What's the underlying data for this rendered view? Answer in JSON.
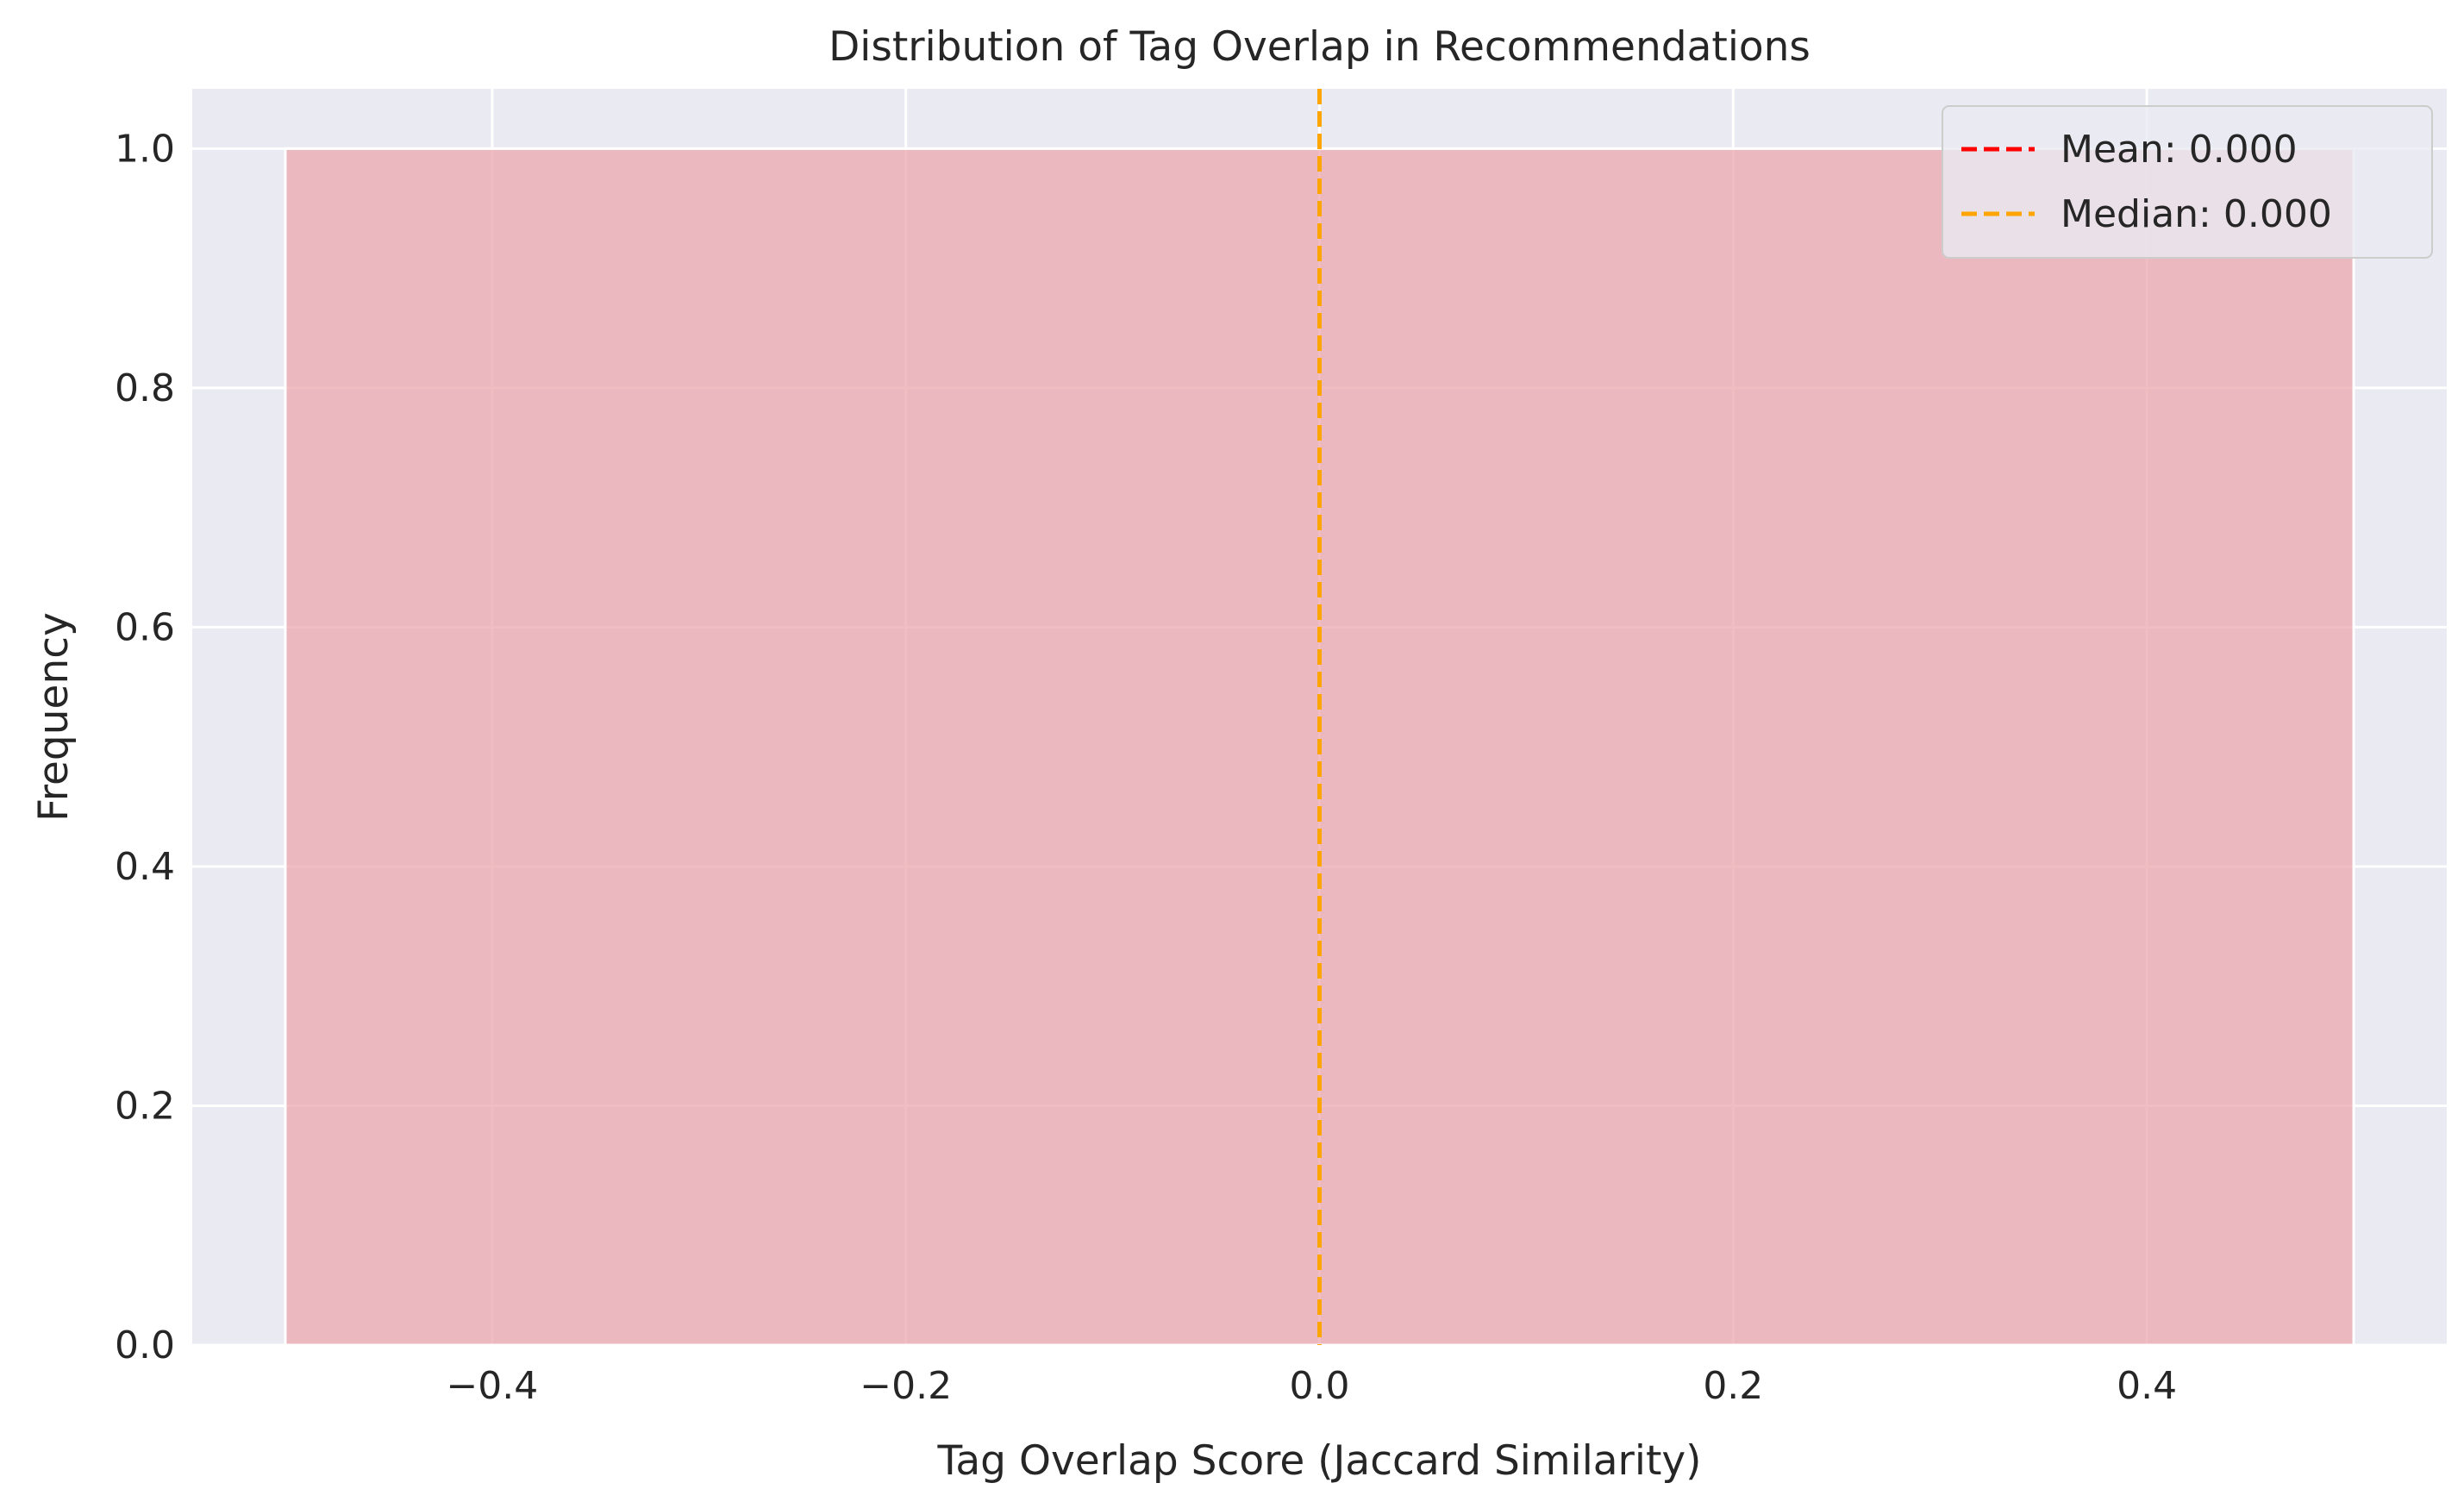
{
  "chart_data": {
    "type": "bar",
    "title": "Distribution of Tag Overlap in Recommendations",
    "xlabel": "Tag Overlap Score (Jaccard Similarity)",
    "ylabel": "Frequency",
    "xlim": [
      -0.545,
      1.0
    ],
    "ylim": [
      0,
      1.05
    ],
    "xticks": [
      -0.4,
      -0.2,
      0.0,
      0.2,
      0.4
    ],
    "xtick_labels": [
      "−0.4",
      "−0.2",
      "0.0",
      "0.2",
      "0.4"
    ],
    "yticks": [
      0.0,
      0.2,
      0.4,
      0.6,
      0.8,
      1.0
    ],
    "ytick_labels": [
      "0.0",
      "0.2",
      "0.4",
      "0.6",
      "0.8",
      "1.0"
    ],
    "bins": [
      {
        "x0": -0.5,
        "x1": 0.5,
        "value": 1.0
      }
    ],
    "bar_color": "#eaa3a8",
    "grid": true,
    "background": "#eaeaf2",
    "vlines": [
      {
        "label": "Mean: 0.000",
        "x": 0.0,
        "color": "#ff0000",
        "style": "dashed"
      },
      {
        "label": "Median: 0.000",
        "x": 0.0,
        "color": "#ffa500",
        "style": "dashed"
      }
    ],
    "legend_position": "top-right"
  }
}
